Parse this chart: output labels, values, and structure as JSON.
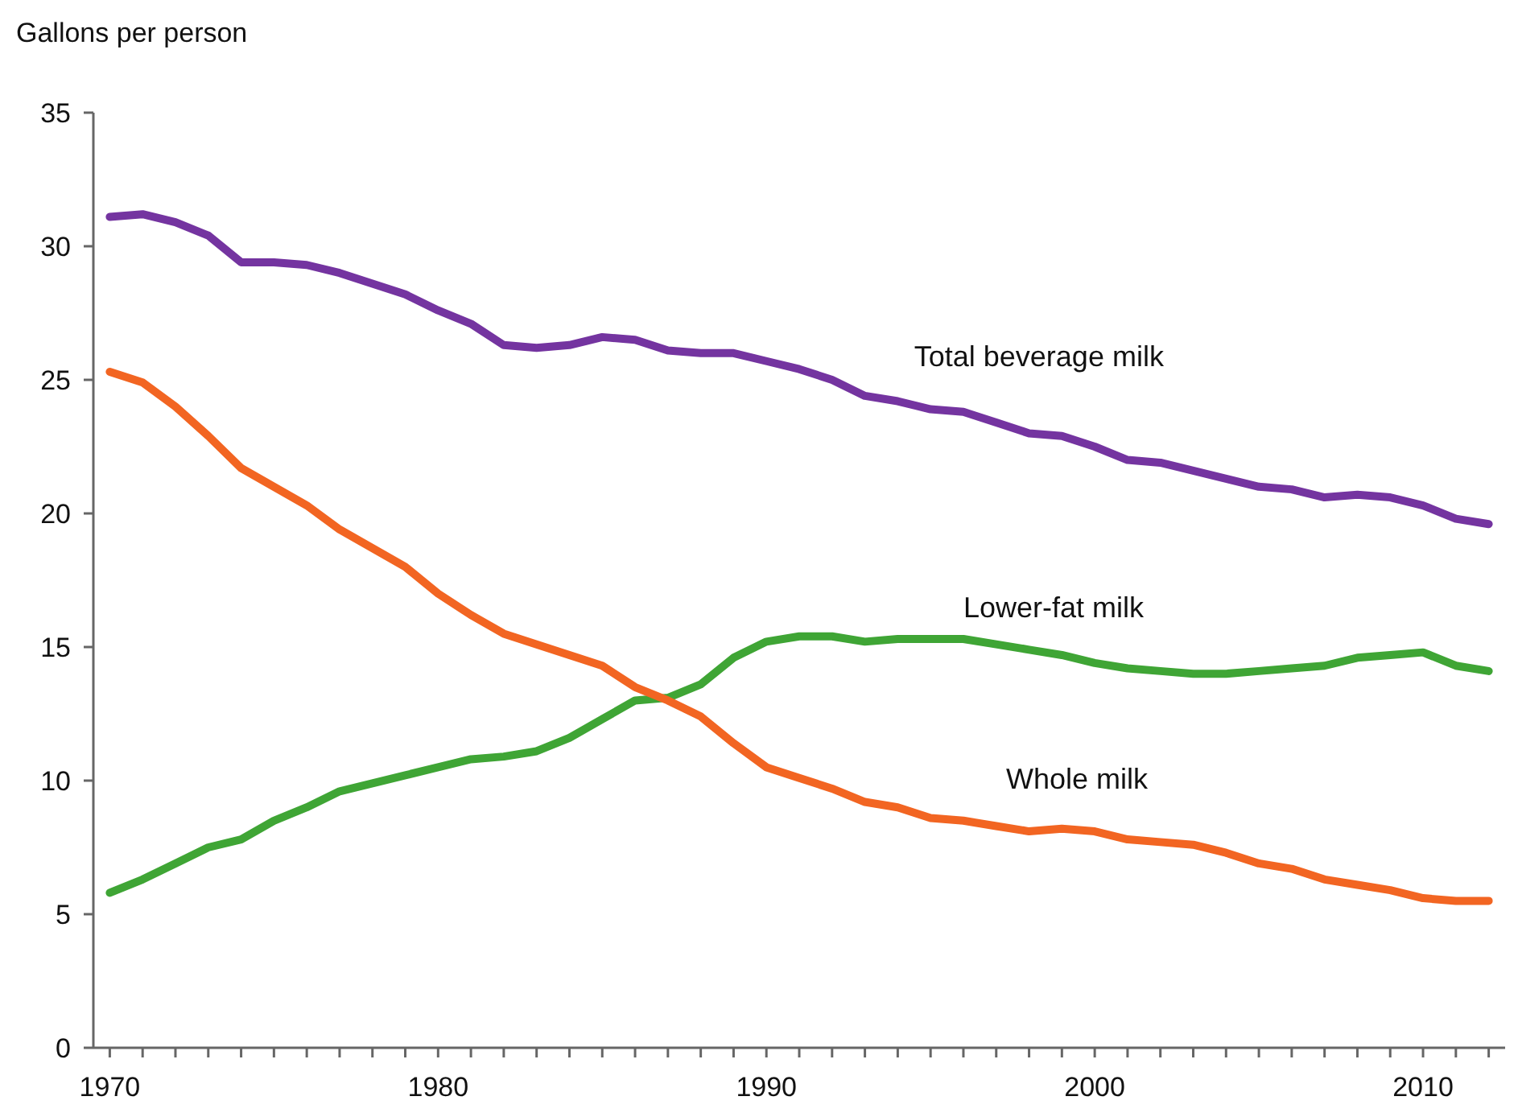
{
  "chart_data": {
    "type": "line",
    "ylabel": "Gallons per person",
    "x": [
      1970,
      1971,
      1972,
      1973,
      1974,
      1975,
      1976,
      1977,
      1978,
      1979,
      1980,
      1981,
      1982,
      1983,
      1984,
      1985,
      1986,
      1987,
      1988,
      1989,
      1990,
      1991,
      1992,
      1993,
      1994,
      1995,
      1996,
      1997,
      1998,
      1999,
      2000,
      2001,
      2002,
      2003,
      2004,
      2005,
      2006,
      2007,
      2008,
      2009,
      2010,
      2011,
      2012
    ],
    "series": [
      {
        "name": "Total beverage milk",
        "color": "#7434a0",
        "values": [
          31.1,
          31.2,
          30.9,
          30.4,
          29.4,
          29.4,
          29.3,
          29.0,
          28.6,
          28.2,
          27.6,
          27.1,
          26.3,
          26.2,
          26.3,
          26.6,
          26.5,
          26.1,
          26.0,
          26.0,
          25.7,
          25.4,
          25.0,
          24.4,
          24.2,
          23.9,
          23.8,
          23.4,
          23.0,
          22.9,
          22.5,
          22.0,
          21.9,
          21.6,
          21.3,
          21.0,
          20.9,
          20.6,
          20.7,
          20.6,
          20.3,
          19.8,
          19.6
        ]
      },
      {
        "name": "Lower-fat milk",
        "color": "#3fa535",
        "values": [
          5.8,
          6.3,
          6.9,
          7.5,
          7.8,
          8.5,
          9.0,
          9.6,
          9.9,
          10.2,
          10.5,
          10.8,
          10.9,
          11.1,
          11.6,
          12.3,
          13.0,
          13.1,
          13.6,
          14.6,
          15.2,
          15.4,
          15.4,
          15.2,
          15.3,
          15.3,
          15.3,
          15.1,
          14.9,
          14.7,
          14.4,
          14.2,
          14.1,
          14.0,
          14.0,
          14.1,
          14.2,
          14.3,
          14.6,
          14.7,
          14.8,
          14.3,
          14.1
        ]
      },
      {
        "name": "Whole milk",
        "color": "#f26522",
        "values": [
          25.3,
          24.9,
          24.0,
          22.9,
          21.7,
          21.0,
          20.3,
          19.4,
          18.7,
          18.0,
          17.0,
          16.2,
          15.5,
          15.1,
          14.7,
          14.3,
          13.5,
          13.0,
          12.4,
          11.4,
          10.5,
          10.1,
          9.7,
          9.2,
          9.0,
          8.6,
          8.5,
          8.3,
          8.1,
          8.2,
          8.1,
          7.8,
          7.7,
          7.6,
          7.3,
          6.9,
          6.7,
          6.3,
          6.1,
          5.9,
          5.6,
          5.5,
          5.5
        ]
      }
    ],
    "xlim": [
      1969.5,
      2012.5
    ],
    "xticks": [
      1970,
      {
        "value": 1971,
        "label": null
      },
      {
        "value": 1972,
        "label": null
      },
      {
        "value": 1973,
        "label": null
      },
      {
        "value": 1974,
        "label": null
      },
      {
        "value": 1975,
        "label": null
      },
      {
        "value": 1976,
        "label": null
      },
      {
        "value": 1977,
        "label": null
      },
      {
        "value": 1978,
        "label": null
      },
      {
        "value": 1979,
        "label": null
      },
      1980,
      {
        "value": 1981,
        "label": null
      },
      {
        "value": 1982,
        "label": null
      },
      {
        "value": 1983,
        "label": null
      },
      {
        "value": 1984,
        "label": null
      },
      {
        "value": 1985,
        "label": null
      },
      {
        "value": 1986,
        "label": null
      },
      {
        "value": 1987,
        "label": null
      },
      {
        "value": 1988,
        "label": null
      },
      {
        "value": 1989,
        "label": null
      },
      1990,
      {
        "value": 1991,
        "label": null
      },
      {
        "value": 1992,
        "label": null
      },
      {
        "value": 1993,
        "label": null
      },
      {
        "value": 1994,
        "label": null
      },
      {
        "value": 1995,
        "label": null
      },
      {
        "value": 1996,
        "label": null
      },
      {
        "value": 1997,
        "label": null
      },
      {
        "value": 1998,
        "label": null
      },
      {
        "value": 1999,
        "label": null
      },
      2000,
      {
        "value": 2001,
        "label": null
      },
      {
        "value": 2002,
        "label": null
      },
      {
        "value": 2003,
        "label": null
      },
      {
        "value": 2004,
        "label": null
      },
      {
        "value": 2005,
        "label": null
      },
      {
        "value": 2006,
        "label": null
      },
      {
        "value": 2007,
        "label": null
      },
      {
        "value": 2008,
        "label": null
      },
      {
        "value": 2009,
        "label": null
      },
      2010,
      {
        "value": 2011,
        "label": null
      },
      {
        "value": 2012,
        "label": null
      }
    ],
    "ylim": [
      0,
      35
    ],
    "yticks": [
      0,
      5,
      10,
      15,
      20,
      25,
      30,
      35
    ],
    "grid": false,
    "legend": false
  }
}
